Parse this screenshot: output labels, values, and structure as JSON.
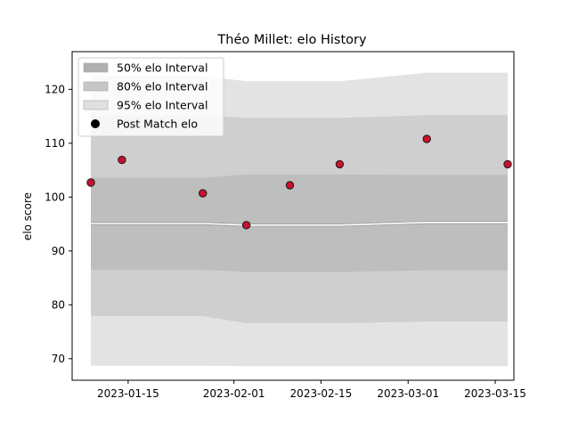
{
  "chart_data": {
    "type": "area",
    "title": "Théo Millet: elo History",
    "xlabel": "",
    "ylabel": "elo score",
    "x_type": "date",
    "xlim": [
      "2023-01-06",
      "2023-03-18"
    ],
    "ylim": [
      66,
      127
    ],
    "x_ticks": [
      "2023-01-15",
      "2023-02-01",
      "2023-02-15",
      "2023-03-01",
      "2023-03-15"
    ],
    "y_ticks": [
      70,
      80,
      90,
      100,
      110,
      120
    ],
    "grid": false,
    "legend_position": "top-left",
    "bands": [
      {
        "name": "95% elo Interval",
        "color": "#e3e3e3",
        "x": [
          "2023-01-09",
          "2023-01-14",
          "2023-01-27",
          "2023-02-03",
          "2023-02-10",
          "2023-02-18",
          "2023-03-04",
          "2023-03-17"
        ],
        "lower": [
          68.7,
          68.7,
          68.7,
          68.6,
          68.6,
          68.6,
          68.6,
          68.6
        ],
        "upper": [
          122.5,
          122.5,
          122.5,
          121.5,
          121.5,
          121.5,
          123.1,
          123.1
        ]
      },
      {
        "name": "80% elo Interval",
        "color": "#cfcfcf",
        "x": [
          "2023-01-09",
          "2023-01-14",
          "2023-01-27",
          "2023-02-03",
          "2023-02-10",
          "2023-02-18",
          "2023-03-04",
          "2023-03-17"
        ],
        "lower": [
          77.9,
          77.9,
          77.9,
          76.6,
          76.6,
          76.6,
          76.9,
          76.9
        ],
        "upper": [
          115.2,
          115.2,
          115.2,
          114.7,
          114.7,
          114.7,
          115.2,
          115.2
        ]
      },
      {
        "name": "50% elo Interval",
        "color": "#bebebe",
        "x": [
          "2023-01-09",
          "2023-01-14",
          "2023-01-27",
          "2023-02-03",
          "2023-02-10",
          "2023-02-18",
          "2023-03-04",
          "2023-03-17"
        ],
        "lower": [
          86.5,
          86.5,
          86.5,
          86.1,
          86.1,
          86.1,
          86.4,
          86.4
        ],
        "upper": [
          103.6,
          103.6,
          103.6,
          104.2,
          104.2,
          104.2,
          104.1,
          104.1
        ]
      }
    ],
    "series": [
      {
        "type": "line",
        "color": "#ffffff",
        "x": [
          "2023-01-09",
          "2023-01-14",
          "2023-01-27",
          "2023-02-03",
          "2023-02-10",
          "2023-02-18",
          "2023-03-04",
          "2023-03-17"
        ],
        "y": [
          95.1,
          95.1,
          95.1,
          94.8,
          94.8,
          94.8,
          95.3,
          95.3
        ]
      },
      {
        "name": "Post Match elo",
        "type": "scatter",
        "color": "#c8102e",
        "x": [
          "2023-01-09",
          "2023-01-14",
          "2023-01-27",
          "2023-02-03",
          "2023-02-10",
          "2023-02-18",
          "2023-03-04",
          "2023-03-17"
        ],
        "y": [
          102.7,
          106.9,
          100.7,
          94.8,
          102.2,
          106.1,
          110.8,
          106.1
        ]
      }
    ],
    "legend": [
      {
        "label": "50% elo Interval",
        "swatch": "band",
        "color": "#b0b0b0"
      },
      {
        "label": "80% elo Interval",
        "swatch": "band",
        "color": "#c6c6c6"
      },
      {
        "label": "95% elo Interval",
        "swatch": "band",
        "color": "#e0e0e0"
      },
      {
        "label": "Post Match elo",
        "swatch": "dot",
        "color": "#000000"
      }
    ]
  }
}
